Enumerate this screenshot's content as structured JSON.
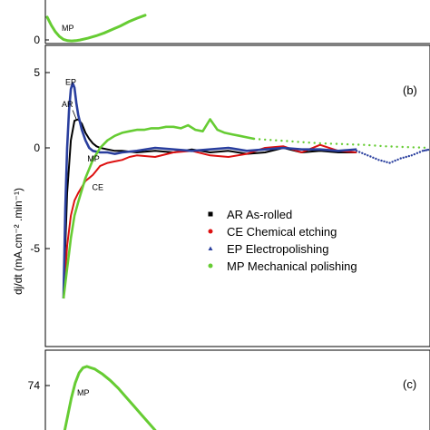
{
  "chart_data": [
    {
      "panel": "a",
      "type": "line",
      "ytick_labels": [
        "0"
      ],
      "annotations": [
        {
          "text": "MP",
          "x": 4.0,
          "y": 0.5
        }
      ],
      "series": [
        {
          "label": "MP",
          "color": "#66cc33",
          "x": [
            0,
            1,
            2,
            3,
            4,
            5,
            6,
            7,
            8,
            10,
            12,
            14,
            16,
            18,
            20,
            22,
            24
          ],
          "y": [
            4.5,
            3.1,
            2.0,
            1.2,
            0.7,
            0.5,
            0.45,
            0.5,
            0.6,
            0.9,
            1.3,
            1.8,
            2.4,
            3.0,
            3.7,
            4.3,
            4.8
          ]
        }
      ]
    },
    {
      "panel": "b",
      "type": "line",
      "panel_label": "(b)",
      "xlim": [
        0,
        100
      ],
      "ylim": [
        -10,
        5
      ],
      "yticks": [
        5,
        0,
        -5
      ],
      "ytick_labels": [
        "5",
        "0",
        "-5"
      ],
      "ylabel": "dj/dt (mA.cm⁻² .min⁻¹)",
      "legend": {
        "position": "lower-right",
        "entries": [
          {
            "key": "AR",
            "text": "AR As-rolled",
            "color": "#000000",
            "marker": "square"
          },
          {
            "key": "CE",
            "text": "CE Chemical etching",
            "color": "#dd1111",
            "marker": "circle"
          },
          {
            "key": "EP",
            "text": "EP Electropolishing",
            "color": "#2a3f9e",
            "marker": "triangle"
          },
          {
            "key": "MP",
            "text": "MP Mechanical polishing",
            "color": "#66cc33",
            "marker": "circle"
          }
        ]
      },
      "annotations": [
        {
          "text": "EP",
          "x": 0.5,
          "y": 4.2
        },
        {
          "text": "AR",
          "x": -0.5,
          "y": 2.7
        },
        {
          "text": "MP",
          "x": 6.5,
          "y": -0.9
        },
        {
          "text": "CE",
          "x": 7.8,
          "y": -2.8
        }
      ],
      "series": [
        {
          "name": "AR",
          "color": "#000000",
          "style": "solid",
          "x": [
            0,
            1,
            2,
            3,
            4,
            5,
            6,
            7,
            8,
            9,
            10,
            12,
            14,
            16,
            20,
            25,
            30,
            35,
            40,
            45,
            50,
            55,
            60,
            65,
            70,
            75,
            80
          ],
          "y": [
            -10,
            -3,
            0.5,
            1.8,
            1.9,
            1.6,
            1.0,
            0.6,
            0.3,
            0.1,
            0.0,
            -0.1,
            -0.2,
            -0.2,
            -0.3,
            -0.2,
            -0.3,
            -0.1,
            -0.3,
            -0.2,
            -0.4,
            -0.3,
            0.0,
            -0.3,
            -0.2,
            -0.3,
            -0.3
          ]
        },
        {
          "name": "CE",
          "color": "#dd1111",
          "style": "solid",
          "x": [
            0,
            1,
            2,
            3,
            4,
            5,
            6,
            7,
            8,
            9,
            10,
            12,
            14,
            16,
            18,
            20,
            25,
            30,
            35,
            40,
            45,
            50,
            55,
            60,
            65,
            70,
            75,
            80
          ],
          "y": [
            -10,
            -6.5,
            -4.5,
            -3.5,
            -3.0,
            -2.6,
            -2.2,
            -2.0,
            -1.8,
            -1.5,
            -1.2,
            -1.0,
            -0.9,
            -0.8,
            -0.6,
            -0.5,
            -0.6,
            -0.3,
            -0.2,
            -0.5,
            -0.6,
            -0.4,
            0.0,
            0.1,
            -0.3,
            0.2,
            -0.2,
            -0.3
          ]
        },
        {
          "name": "EP",
          "color": "#2a3f9e",
          "style": "solid",
          "x": [
            0,
            0.5,
            1,
            1.5,
            2,
            2.5,
            3,
            3.5,
            4,
            5,
            6,
            7,
            8,
            10,
            12,
            14,
            16,
            20,
            25,
            30,
            35,
            40,
            45,
            50,
            55,
            60,
            65,
            70,
            75,
            80
          ],
          "y": [
            -10,
            -4,
            0,
            2.5,
            3.9,
            4.3,
            4.0,
            3.0,
            2.2,
            1.2,
            0.5,
            0.0,
            -0.2,
            -0.3,
            -0.3,
            -0.4,
            -0.3,
            -0.2,
            0.0,
            -0.1,
            -0.2,
            -0.1,
            0.0,
            -0.2,
            -0.1,
            0.0,
            -0.1,
            -0.1,
            -0.2,
            -0.1
          ]
        },
        {
          "name": "EP",
          "color": "#2a3f9e",
          "style": "dotted",
          "x": [
            80,
            83,
            86,
            89,
            92,
            95,
            98,
            100
          ],
          "y": [
            -0.2,
            -0.5,
            -0.8,
            -1.0,
            -0.7,
            -0.5,
            -0.2,
            -0.1
          ]
        },
        {
          "name": "MP",
          "color": "#66cc33",
          "style": "solid",
          "x": [
            0,
            0.5,
            1,
            1.5,
            2,
            3,
            4,
            5,
            6,
            7,
            8,
            10,
            12,
            14,
            16,
            18,
            20,
            22,
            24,
            26,
            28,
            30,
            32,
            34,
            36,
            38,
            40,
            42,
            44,
            46,
            48,
            50,
            52
          ],
          "y": [
            -10,
            -9,
            -8,
            -7,
            -6,
            -4.5,
            -3.6,
            -2.8,
            -2.0,
            -1.4,
            -0.8,
            0.0,
            0.5,
            0.8,
            1.0,
            1.1,
            1.2,
            1.2,
            1.3,
            1.3,
            1.4,
            1.4,
            1.3,
            1.5,
            1.2,
            1.1,
            1.9,
            1.2,
            1.0,
            0.9,
            0.8,
            0.7,
            0.6
          ]
        },
        {
          "name": "MP",
          "color": "#66cc33",
          "style": "dotted",
          "x": [
            52,
            58,
            64,
            70,
            76,
            82,
            88,
            94,
            100
          ],
          "y": [
            0.6,
            0.5,
            0.4,
            0.3,
            0.25,
            0.2,
            0.1,
            0.05,
            0.0
          ]
        }
      ]
    },
    {
      "panel": "c",
      "type": "line",
      "panel_label": "(c)",
      "ytick_labels": [
        "74"
      ],
      "annotations": [
        {
          "text": "MP",
          "x": 3.5,
          "y": 73.2
        }
      ],
      "series": [
        {
          "label": "MP",
          "color": "#66cc33",
          "x": [
            0,
            1,
            2,
            3,
            4,
            5,
            6,
            7,
            8,
            9,
            10,
            12,
            14,
            16,
            18,
            20,
            22,
            24
          ],
          "y": [
            70,
            71.5,
            73,
            74.2,
            75.0,
            75.4,
            75.5,
            75.4,
            75.3,
            75.1,
            74.9,
            74.4,
            73.8,
            73.1,
            72.4,
            71.7,
            71.0,
            70.3
          ]
        }
      ]
    }
  ]
}
